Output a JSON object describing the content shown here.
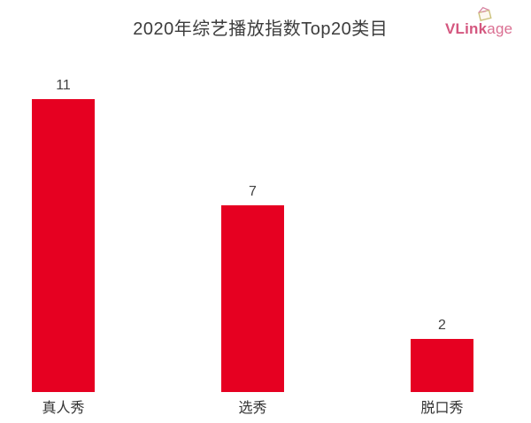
{
  "header": {
    "title": "2020年综艺播放指数Top20类目",
    "logo": {
      "bold": "VLink",
      "light": "age",
      "color": "#d4577f",
      "icon": "gift-box-icon"
    }
  },
  "chart_data": {
    "type": "bar",
    "title": "2020年综艺播放指数Top20类目",
    "categories": [
      "真人秀",
      "选秀",
      "脱口秀"
    ],
    "values": [
      11,
      7,
      2
    ],
    "value_labels_shown": true,
    "bar_color": "#e60021",
    "label_color": "#333333",
    "value_label_color": "#424242",
    "xlabel": "",
    "ylabel": "",
    "ylim": [
      0,
      11
    ],
    "grid": false,
    "axis_lines": false,
    "legend_position": "none",
    "background": "#ffffff"
  }
}
